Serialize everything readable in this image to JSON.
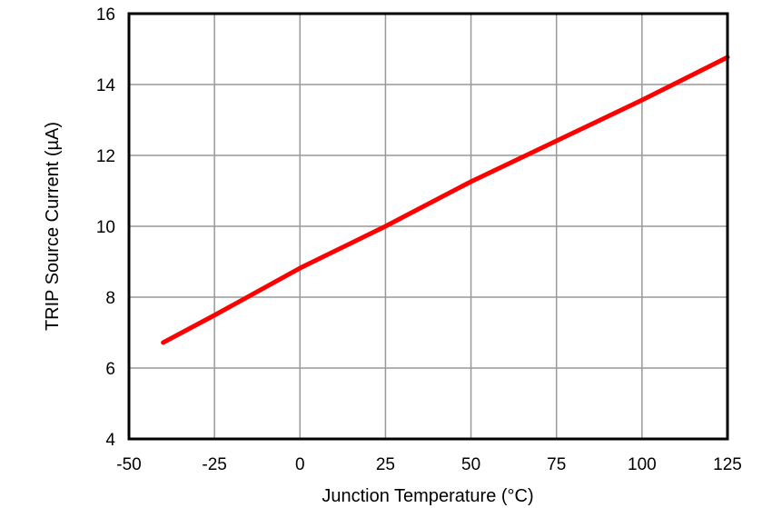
{
  "chart_data": {
    "type": "line",
    "title": "",
    "xlabel": "Junction Temperature (°C)",
    "ylabel": "TRIP Source Current (µA)",
    "xlim": [
      -50,
      125
    ],
    "ylim": [
      4,
      16
    ],
    "xticks": [
      -50,
      -25,
      0,
      25,
      50,
      75,
      100,
      125
    ],
    "yticks": [
      4,
      6,
      8,
      10,
      12,
      14,
      16
    ],
    "grid": true,
    "series": [
      {
        "color": "#ff0000",
        "x": [
          -40,
          -25,
          0,
          25,
          50,
          75,
          100,
          125
        ],
        "y": [
          6.72,
          7.49,
          8.82,
          10.0,
          11.26,
          12.41,
          13.56,
          14.77
        ]
      }
    ]
  }
}
